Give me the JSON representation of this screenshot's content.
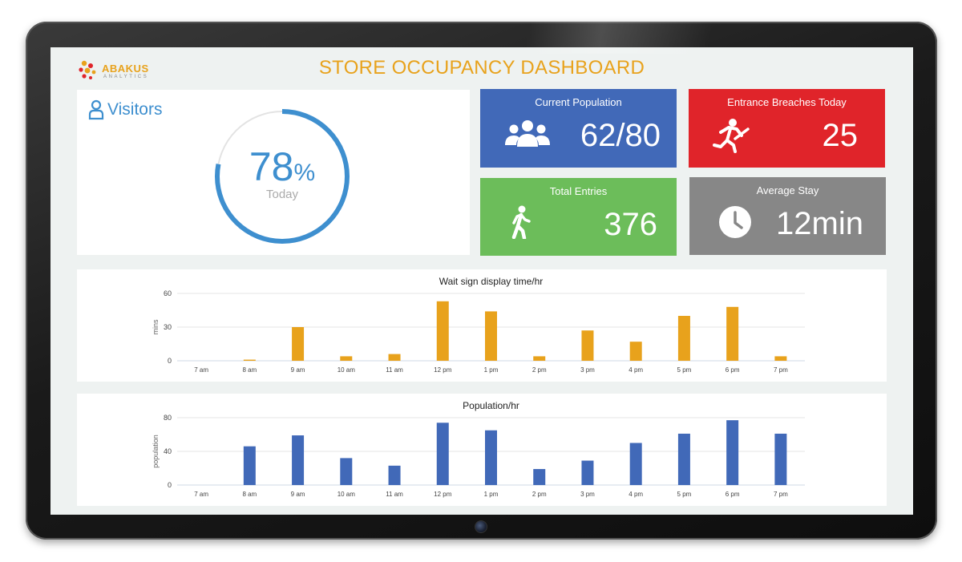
{
  "header": {
    "brand": "ABAKUS",
    "brand_sub": "ANALYTICS",
    "title": "STORE OCCUPANCY DASHBOARD"
  },
  "visitors": {
    "label": "Visitors",
    "percent": 78,
    "percent_text": "78",
    "percent_sign": "%",
    "period": "Today",
    "accent": "#3e8fcf"
  },
  "tiles": {
    "current_population": {
      "label": "Current Population",
      "value": "62/80",
      "color": "#4169b8",
      "icon": "group-icon"
    },
    "entrance_breaches": {
      "label": "Entrance Breaches Today",
      "value": "25",
      "color": "#e0242a",
      "icon": "running-person-icon"
    },
    "total_entries": {
      "label": "Total Entries",
      "value": "376",
      "color": "#6cbd5a",
      "icon": "walking-person-icon"
    },
    "average_stay": {
      "label": "Average Stay",
      "value": "12min",
      "color": "#878787",
      "icon": "clock-icon"
    }
  },
  "chart_data": [
    {
      "type": "bar",
      "title": "Wait sign display time/hr",
      "ylabel": "mins",
      "xlabel": "",
      "categories": [
        "7 am",
        "8 am",
        "9 am",
        "10 am",
        "11 am",
        "12 pm",
        "1 pm",
        "2 pm",
        "3 pm",
        "4 pm",
        "5 pm",
        "6 pm",
        "7 pm"
      ],
      "values": [
        0,
        1,
        30,
        4,
        6,
        53,
        44,
        4,
        27,
        17,
        40,
        48,
        4
      ],
      "ylim": [
        0,
        60
      ],
      "yticks": [
        0,
        30,
        60
      ],
      "color": "#e8a21c",
      "grid": true
    },
    {
      "type": "bar",
      "title": "Population/hr",
      "ylabel": "population",
      "xlabel": "",
      "categories": [
        "7 am",
        "8 am",
        "9 am",
        "10 am",
        "11 am",
        "12 pm",
        "1 pm",
        "2 pm",
        "3 pm",
        "4 pm",
        "5 pm",
        "6 pm",
        "7 pm"
      ],
      "values": [
        0,
        46,
        59,
        32,
        23,
        74,
        65,
        19,
        29,
        50,
        61,
        77,
        61
      ],
      "ylim": [
        0,
        80
      ],
      "yticks": [
        0,
        40,
        80
      ],
      "color": "#4169b8",
      "grid": true
    }
  ]
}
